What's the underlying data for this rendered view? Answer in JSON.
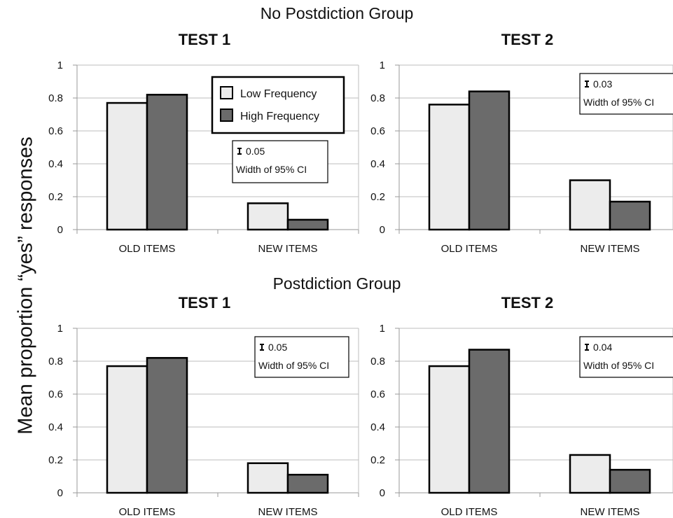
{
  "figure": {
    "ylabel": "Mean proportion “yes” responses",
    "groups": [
      "No Postdiction Group",
      "Postdiction Group"
    ],
    "legend": [
      {
        "label": "Low Frequency",
        "color": "#ececec"
      },
      {
        "label": "High Frequency",
        "color": "#6b6b6b"
      }
    ]
  },
  "chart_data": [
    {
      "type": "bar",
      "group": "No Postdiction Group",
      "title": "TEST 1",
      "categories": [
        "OLD ITEMS",
        "NEW ITEMS"
      ],
      "series": [
        {
          "name": "Low Frequency",
          "values": [
            0.77,
            0.16
          ]
        },
        {
          "name": "High Frequency",
          "values": [
            0.82,
            0.06
          ]
        }
      ],
      "ylim": [
        0,
        1
      ],
      "yticks": [
        "0",
        "0.2",
        "0.4",
        "0.6",
        "0.8",
        "1"
      ],
      "grid": true,
      "legend": "top-right",
      "ci_note": {
        "value": "0.05",
        "label": "Width of 95% CI"
      }
    },
    {
      "type": "bar",
      "group": "No Postdiction Group",
      "title": "TEST 2",
      "categories": [
        "OLD ITEMS",
        "NEW ITEMS"
      ],
      "series": [
        {
          "name": "Low Frequency",
          "values": [
            0.76,
            0.3
          ]
        },
        {
          "name": "High Frequency",
          "values": [
            0.84,
            0.17
          ]
        }
      ],
      "ylim": [
        0,
        1
      ],
      "yticks": [
        "0",
        "0.2",
        "0.4",
        "0.6",
        "0.8",
        "1"
      ],
      "grid": true,
      "ci_note": {
        "value": "0.03",
        "label": "Width of 95% CI"
      }
    },
    {
      "type": "bar",
      "group": "Postdiction Group",
      "title": "TEST 1",
      "categories": [
        "OLD ITEMS",
        "NEW ITEMS"
      ],
      "series": [
        {
          "name": "Low Frequency",
          "values": [
            0.77,
            0.18
          ]
        },
        {
          "name": "High Frequency",
          "values": [
            0.82,
            0.11
          ]
        }
      ],
      "ylim": [
        0,
        1
      ],
      "yticks": [
        "0",
        "0.2",
        "0.4",
        "0.6",
        "0.8",
        "1"
      ],
      "grid": true,
      "ci_note": {
        "value": "0.05",
        "label": "Width of 95% CI"
      }
    },
    {
      "type": "bar",
      "group": "Postdiction Group",
      "title": "TEST 2",
      "categories": [
        "OLD ITEMS",
        "NEW ITEMS"
      ],
      "series": [
        {
          "name": "Low Frequency",
          "values": [
            0.77,
            0.23
          ]
        },
        {
          "name": "High Frequency",
          "values": [
            0.87,
            0.14
          ]
        }
      ],
      "ylim": [
        0,
        1
      ],
      "yticks": [
        "0",
        "0.2",
        "0.4",
        "0.6",
        "0.8",
        "1"
      ],
      "grid": true,
      "ci_note": {
        "value": "0.04",
        "label": "Width of 95% CI"
      }
    }
  ]
}
